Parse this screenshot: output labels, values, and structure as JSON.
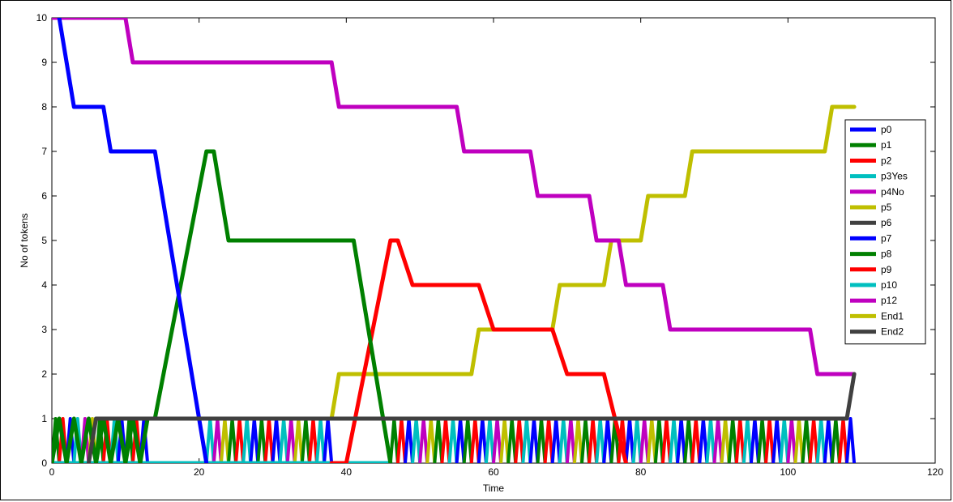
{
  "chart_data": {
    "type": "line",
    "xlabel": "Time",
    "ylabel": "No of tokens",
    "xlim": [
      0,
      120
    ],
    "ylim": [
      0,
      10
    ],
    "xticks": [
      0,
      20,
      40,
      60,
      80,
      100,
      120
    ],
    "yticks": [
      0,
      1,
      2,
      3,
      4,
      5,
      6,
      7,
      8,
      9,
      10
    ],
    "legend_position": "right",
    "series": [
      {
        "name": "p0",
        "color": "#0000ff",
        "x": [
          1,
          3,
          7,
          8,
          14,
          21
        ],
        "y": [
          10,
          8,
          8,
          7,
          7,
          0
        ]
      },
      {
        "name": "p1",
        "color": "#008000",
        "x": [
          0,
          1,
          2,
          3,
          4,
          5,
          6,
          7,
          8,
          9,
          10,
          11,
          12,
          13,
          14,
          21,
          22,
          24,
          41,
          46
        ],
        "y": [
          0,
          1,
          0,
          1,
          0,
          1,
          0,
          1,
          0,
          1,
          0,
          1,
          0,
          1,
          1,
          7,
          7,
          5,
          5,
          0
        ]
      },
      {
        "name": "p2",
        "color": "#ff0000",
        "x": [
          38,
          40,
          46,
          47,
          49,
          58,
          60,
          68,
          70,
          75,
          78
        ],
        "y": [
          0,
          0,
          5,
          5,
          4,
          4,
          3,
          3,
          2,
          2,
          0
        ]
      },
      {
        "name": "p3Yes",
        "color": "#00bfbf",
        "x": [
          0,
          46
        ],
        "y": [
          0,
          0
        ]
      },
      {
        "name": "p4No",
        "color": "#bf00bf",
        "x": [
          0,
          10,
          11,
          38,
          39,
          55,
          56,
          65,
          66,
          73,
          74,
          77,
          78,
          83,
          84,
          103,
          104,
          109
        ],
        "y": [
          10,
          10,
          9,
          9,
          8,
          8,
          7,
          7,
          6,
          6,
          5,
          5,
          4,
          4,
          3,
          3,
          2,
          2
        ]
      },
      {
        "name": "p5",
        "color": "#bfbf00",
        "x": [
          38,
          39,
          57,
          58,
          68,
          69,
          75,
          76,
          80,
          81,
          86,
          87,
          105,
          106,
          109
        ],
        "y": [
          1,
          2,
          2,
          3,
          3,
          4,
          4,
          5,
          5,
          6,
          6,
          7,
          7,
          8,
          8
        ]
      },
      {
        "name": "p6",
        "color": "#404040",
        "x": [
          5,
          6,
          108,
          109
        ],
        "y": [
          0,
          1,
          1,
          2
        ]
      },
      {
        "name": "p7",
        "color": "#0000ff",
        "x": [],
        "y": []
      },
      {
        "name": "p8",
        "color": "#008000",
        "x": [],
        "y": []
      },
      {
        "name": "p9",
        "color": "#ff0000",
        "x": [],
        "y": []
      },
      {
        "name": "p10",
        "color": "#00bfbf",
        "x": [],
        "y": []
      },
      {
        "name": "p12",
        "color": "#bf00bf",
        "x": [],
        "y": []
      },
      {
        "name": "End1",
        "color": "#bfbf00",
        "x": [],
        "y": []
      },
      {
        "name": "End2",
        "color": "#404040",
        "x": [],
        "y": []
      }
    ]
  }
}
